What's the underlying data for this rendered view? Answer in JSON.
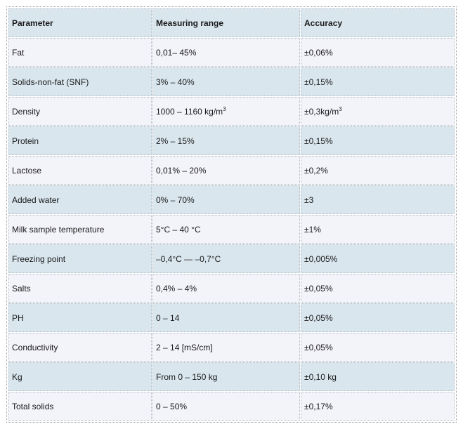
{
  "table": {
    "headers": [
      "Parameter",
      "Measuring range",
      "Accuracy"
    ],
    "rows": [
      {
        "parameter": "Fat",
        "range": "0,01– 45%",
        "accuracy": "±0,06%"
      },
      {
        "parameter": "Solids-non-fat (SNF)",
        "range": "3% – 40%",
        "accuracy": "±0,15%"
      },
      {
        "parameter": "Density",
        "range": "1000 – 1160 kg/m",
        "range_sup": "3",
        "accuracy": "±0,3kg/m",
        "accuracy_sup": "3"
      },
      {
        "parameter": "Protein",
        "range": "2% – 15%",
        "accuracy": "±0,15%"
      },
      {
        "parameter": "Lactose",
        "range": "0,01% – 20%",
        "accuracy": "±0,2%"
      },
      {
        "parameter": "Added water",
        "range": "0% – 70%",
        "accuracy": "±3"
      },
      {
        "parameter": "Milk sample temperature",
        "range": "5°C – 40 °C",
        "accuracy": "±1%"
      },
      {
        "parameter": "Freezing point",
        "range": "–0,4°C — –0,7°C",
        "accuracy": "±0,005%"
      },
      {
        "parameter": "Salts",
        "range": "0,4% – 4%",
        "accuracy": "±0,05%"
      },
      {
        "parameter": "PH",
        "range": "0 – 14",
        "accuracy": "±0,05%"
      },
      {
        "parameter": "Conductivity",
        "range": "2 – 14 [mS/cm]",
        "accuracy": "±0,05%"
      },
      {
        "parameter": "Kg",
        "range": "From 0 – 150 kg",
        "accuracy": "±0,10 kg"
      },
      {
        "parameter": "Total solids",
        "range": "0 – 50%",
        "accuracy": "±0,17%"
      }
    ]
  },
  "colors": {
    "shaded_row": "#d9e6ee",
    "plain_row": "#f3f3fa",
    "border": "#b3bcc2"
  }
}
